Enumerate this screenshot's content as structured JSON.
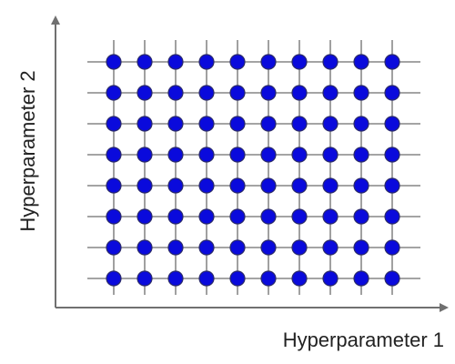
{
  "diagram": {
    "x_axis_label": "Hyperparameter 1",
    "y_axis_label": "Hyperparameter 2",
    "grid": {
      "columns": 10,
      "rows": 8
    },
    "colors": {
      "axis": "#707070",
      "grid_line": "#6e6e6e",
      "point_fill": "#0a0adc",
      "point_stroke": "#2a2a6a",
      "background": "#ffffff"
    }
  }
}
